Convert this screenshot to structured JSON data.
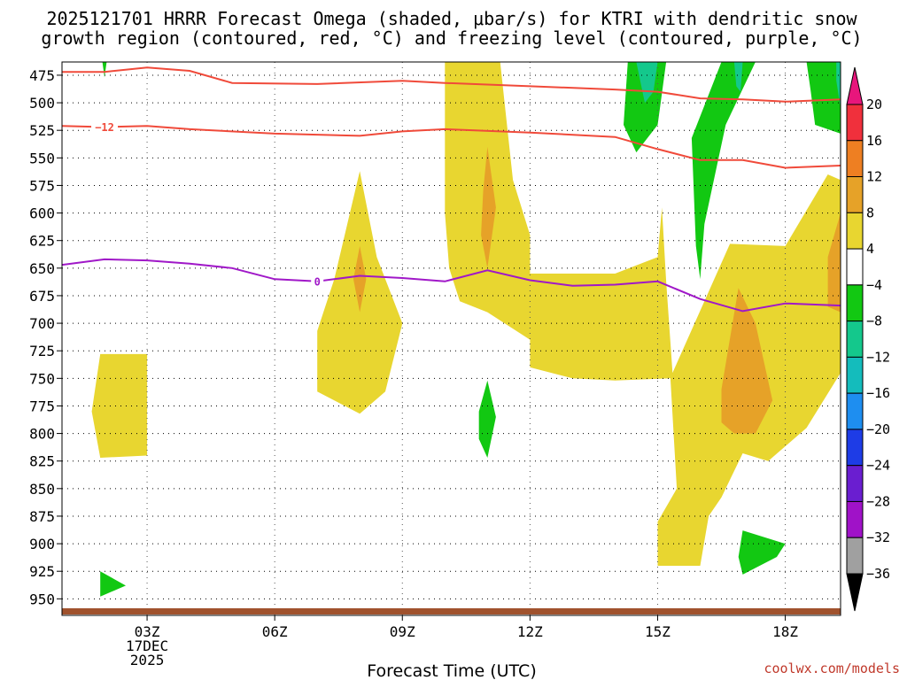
{
  "chart_data": {
    "type": "contour",
    "title_lines": [
      "2025121701 HRRR Forecast Omega (shaded, μbar/s) for KTRI with dendritic snow",
      "growth region (contoured, red, °C) and freezing level (contoured, purple, °C)"
    ],
    "xlabel": "Forecast Time (UTC)",
    "credit": "coolwx.com/models",
    "x_range_hours": [
      1,
      19.3
    ],
    "x_ticks": [
      {
        "hour": 3,
        "lines": [
          "03Z",
          "17DEC",
          "2025"
        ]
      },
      {
        "hour": 6,
        "lines": [
          "06Z"
        ]
      },
      {
        "hour": 9,
        "lines": [
          "09Z"
        ]
      },
      {
        "hour": 12,
        "lines": [
          "12Z"
        ]
      },
      {
        "hour": 15,
        "lines": [
          "15Z"
        ]
      },
      {
        "hour": 18,
        "lines": [
          "18Z"
        ]
      }
    ],
    "y_range_hpa": [
      463,
      965
    ],
    "y_ticks": [
      "475",
      "500",
      "525",
      "550",
      "575",
      "600",
      "625",
      "650",
      "675",
      "700",
      "725",
      "750",
      "775",
      "800",
      "825",
      "850",
      "875",
      "900",
      "925",
      "950"
    ],
    "grid": true,
    "colorbar": {
      "labels": [
        "20",
        "16",
        "12",
        "8",
        "4",
        "−4",
        "−8",
        "−12",
        "−16",
        "−20",
        "−24",
        "−28",
        "−32",
        "−36"
      ],
      "colors": [
        "#e8167c",
        "#f0303c",
        "#ee7f22",
        "#e6a228",
        "#e8d630",
        "#ffffff",
        "#12c812",
        "#14c88c",
        "#14bcbc",
        "#1e8ef0",
        "#1e3ce6",
        "#6a1ed0",
        "#a012c8",
        "#a0a0a0",
        "#000000"
      ]
    },
    "shading_colors": {
      "yellow": "#e8d630",
      "orange": "#e6a228",
      "green": "#12c812",
      "teal": "#14c88c",
      "ground": "#a0522d"
    },
    "isotherms": [
      {
        "color": "#f04a3a",
        "label": "",
        "points": [
          [
            1,
            472
          ],
          [
            2,
            472
          ],
          [
            3,
            468
          ],
          [
            4,
            471
          ],
          [
            5,
            482
          ],
          [
            7,
            483
          ],
          [
            9,
            480
          ],
          [
            10,
            482
          ],
          [
            12,
            485
          ],
          [
            14,
            488
          ],
          [
            15,
            490
          ],
          [
            16,
            496
          ],
          [
            17,
            497
          ],
          [
            18,
            499
          ],
          [
            19.3,
            497
          ]
        ]
      },
      {
        "color": "#f04a3a",
        "label": "−12",
        "points": [
          [
            1,
            521
          ],
          [
            2,
            522
          ],
          [
            3,
            521
          ],
          [
            4,
            524
          ],
          [
            6,
            528
          ],
          [
            8,
            530
          ],
          [
            9,
            526
          ],
          [
            10,
            524
          ],
          [
            12,
            527
          ],
          [
            14,
            531
          ],
          [
            15,
            542
          ],
          [
            16,
            552
          ],
          [
            17,
            552
          ],
          [
            18,
            559
          ],
          [
            19.3,
            557
          ]
        ]
      },
      {
        "color": "#a018c8",
        "label": "0",
        "points": [
          [
            1,
            647
          ],
          [
            2,
            642
          ],
          [
            3,
            643
          ],
          [
            4,
            646
          ],
          [
            5,
            650
          ],
          [
            6,
            660
          ],
          [
            7,
            662
          ],
          [
            8,
            657
          ],
          [
            9,
            659
          ],
          [
            10,
            662
          ],
          [
            11,
            652
          ],
          [
            12,
            661
          ],
          [
            13,
            666
          ],
          [
            14,
            665
          ],
          [
            15,
            662
          ],
          [
            16,
            678
          ],
          [
            17,
            689
          ],
          [
            18,
            682
          ],
          [
            19.3,
            684
          ]
        ]
      }
    ],
    "shaded_regions": [
      {
        "color": "yellow",
        "points": [
          [
            7,
            707
          ],
          [
            7.4,
            660
          ],
          [
            8,
            562
          ],
          [
            8.4,
            640
          ],
          [
            9,
            700
          ],
          [
            8.6,
            762
          ],
          [
            8,
            782
          ],
          [
            7,
            762
          ]
        ]
      },
      {
        "color": "orange",
        "points": [
          [
            8,
            630
          ],
          [
            8.15,
            660
          ],
          [
            8,
            690
          ],
          [
            7.85,
            660
          ]
        ]
      },
      {
        "color": "yellow",
        "points": [
          [
            1.9,
            728
          ],
          [
            3,
            728
          ],
          [
            3,
            820
          ],
          [
            1.9,
            822
          ],
          [
            1.7,
            780
          ]
        ]
      },
      {
        "color": "yellow",
        "points": [
          [
            10,
            463
          ],
          [
            11.3,
            463
          ],
          [
            11.6,
            570
          ],
          [
            12,
            620
          ],
          [
            12,
            655
          ],
          [
            14,
            655
          ],
          [
            15,
            640
          ],
          [
            15.1,
            595
          ],
          [
            15.2,
            662
          ],
          [
            15.35,
            745
          ],
          [
            16.7,
            628
          ],
          [
            18,
            630
          ],
          [
            19,
            565
          ],
          [
            19.3,
            570
          ],
          [
            19.3,
            745
          ],
          [
            18.5,
            795
          ],
          [
            17.6,
            825
          ],
          [
            17,
            818
          ],
          [
            16.5,
            858
          ],
          [
            16.2,
            875
          ],
          [
            16,
            920
          ],
          [
            15,
            920
          ],
          [
            15,
            880
          ],
          [
            15.45,
            850
          ],
          [
            15.3,
            750
          ],
          [
            14,
            752
          ],
          [
            13,
            750
          ],
          [
            12,
            740
          ],
          [
            12,
            715
          ],
          [
            11,
            690
          ],
          [
            10.35,
            680
          ],
          [
            10.1,
            650
          ],
          [
            10,
            600
          ]
        ]
      },
      {
        "color": "orange",
        "points": [
          [
            10.9,
            580
          ],
          [
            11,
            540
          ],
          [
            11.2,
            595
          ],
          [
            11,
            650
          ],
          [
            10.85,
            620
          ]
        ]
      },
      {
        "color": "orange",
        "points": [
          [
            16.5,
            760
          ],
          [
            16.9,
            668
          ],
          [
            17.3,
            700
          ],
          [
            17.7,
            770
          ],
          [
            17.3,
            800
          ],
          [
            16.8,
            800
          ],
          [
            16.5,
            790
          ]
        ]
      },
      {
        "color": "orange",
        "points": [
          [
            19,
            640
          ],
          [
            19.3,
            600
          ],
          [
            19.3,
            690
          ],
          [
            19,
            685
          ]
        ]
      },
      {
        "color": "green",
        "points": [
          [
            14.3,
            463
          ],
          [
            15.2,
            463
          ],
          [
            15,
            520
          ],
          [
            14.5,
            545
          ],
          [
            14.2,
            520
          ]
        ]
      },
      {
        "color": "teal",
        "points": [
          [
            14.5,
            463
          ],
          [
            15,
            463
          ],
          [
            14.9,
            490
          ],
          [
            14.7,
            500
          ]
        ]
      },
      {
        "color": "green",
        "points": [
          [
            15.8,
            532
          ],
          [
            16.5,
            463
          ],
          [
            17.3,
            463
          ],
          [
            16.6,
            520
          ],
          [
            16.1,
            610
          ],
          [
            16,
            660
          ],
          [
            15.9,
            630
          ]
        ]
      },
      {
        "color": "teal",
        "points": [
          [
            16.8,
            463
          ],
          [
            17.0,
            463
          ],
          [
            16.95,
            490
          ],
          [
            16.85,
            485
          ]
        ]
      },
      {
        "color": "green",
        "points": [
          [
            18.5,
            463
          ],
          [
            19.3,
            463
          ],
          [
            19.3,
            528
          ],
          [
            18.7,
            520
          ],
          [
            18.6,
            490
          ]
        ]
      },
      {
        "color": "teal",
        "points": [
          [
            19.2,
            463
          ],
          [
            19.3,
            463
          ],
          [
            19.3,
            505
          ],
          [
            19.2,
            480
          ]
        ]
      },
      {
        "color": "green",
        "points": [
          [
            10.8,
            780
          ],
          [
            11,
            752
          ],
          [
            11.2,
            785
          ],
          [
            11,
            822
          ],
          [
            10.8,
            805
          ]
        ]
      },
      {
        "color": "green",
        "points": [
          [
            17,
            888
          ],
          [
            18,
            900
          ],
          [
            17.8,
            912
          ],
          [
            17,
            928
          ],
          [
            16.9,
            912
          ]
        ]
      },
      {
        "color": "green",
        "points": [
          [
            1.9,
            925
          ],
          [
            2.5,
            938
          ],
          [
            1.9,
            948
          ]
        ]
      },
      {
        "color": "green",
        "points": [
          [
            1.95,
            463
          ],
          [
            2.05,
            463
          ],
          [
            2.0,
            477
          ]
        ]
      }
    ]
  }
}
